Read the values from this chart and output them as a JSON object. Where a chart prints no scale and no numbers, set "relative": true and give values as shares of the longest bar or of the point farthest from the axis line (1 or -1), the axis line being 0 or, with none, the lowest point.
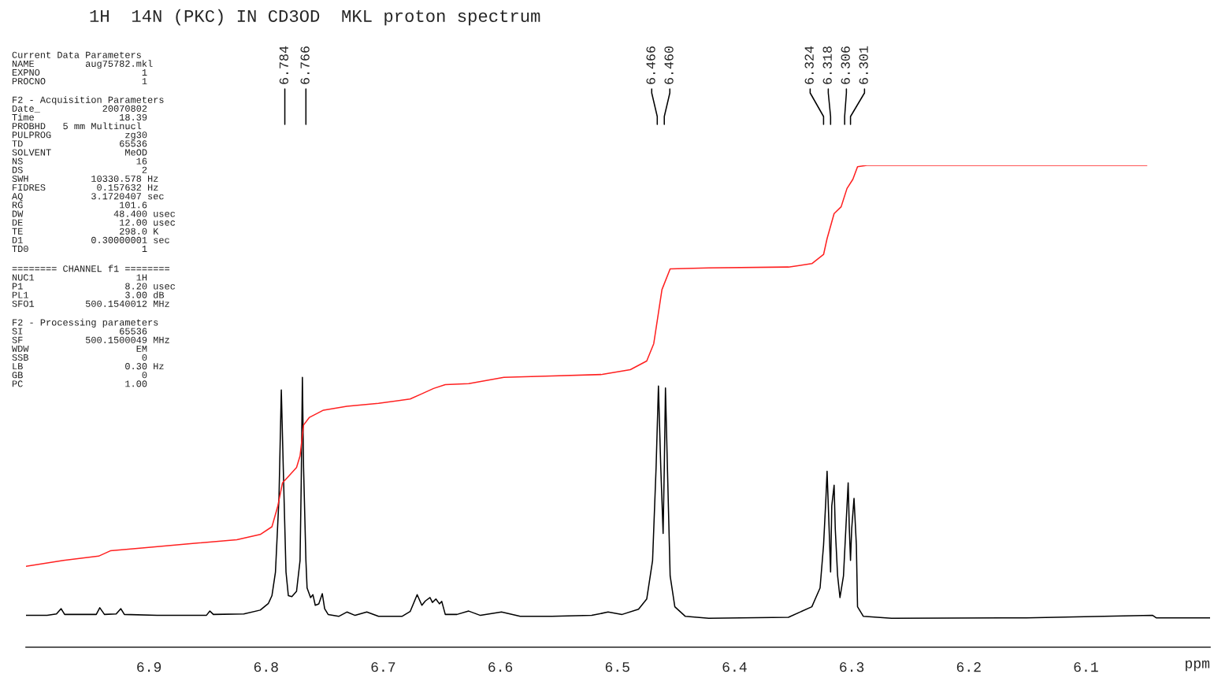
{
  "chart_data": {
    "type": "line",
    "title": "1H  14N (PKC) IN CD3OD  MKL proton spectrum",
    "xlabel": "ppm",
    "relative": true,
    "legend": false,
    "grid": false,
    "xlim": [
      7.005,
      5.994
    ],
    "xticks": [
      6.9,
      6.8,
      6.7,
      6.6,
      6.5,
      6.4,
      6.3,
      6.2,
      6.1
    ],
    "annotations": [
      {
        "text": "6.784",
        "x": 6.784
      },
      {
        "text": "6.766",
        "x": 6.766
      },
      {
        "text": "6.466",
        "x": 6.466
      },
      {
        "text": "6.460",
        "x": 6.46
      },
      {
        "text": "6.324",
        "x": 6.324
      },
      {
        "text": "6.318",
        "x": 6.318
      },
      {
        "text": "6.306",
        "x": 6.306
      },
      {
        "text": "6.301",
        "x": 6.301
      },
      "Current Data Parameters\nNAME         aug75782.mkl\nEXPNO                  1\nPROCNO                 1",
      "F2 - Acquisition Parameters\nDate_           20070802\nTime               18.39\nPROBHD   5 mm Multinucl\nPULPROG             zg30\nTD                 65536\nSOLVENT             MeOD\nNS                    16\nDS                     2\nSWH           10330.578 Hz\nFIDRES         0.157632 Hz\nAQ            3.1720407 sec\nRG                 101.6\nDW                48.400 usec\nDE                 12.00 usec\nTE                 298.0 K\nD1            0.30000001 sec\nTD0                    1",
      "======== CHANNEL f1 ========\nNUC1                  1H\nP1                  8.20 usec\nPL1                 3.00 dB\nSFO1         500.1540012 MHz",
      "F2 - Processing parameters\nSI                 65536\nSF           500.1500049 MHz\nWDW                   EM\nSSB                    0\nLB                  0.30 Hz\nGB                     0\nPC                  1.00"
    ],
    "series": [
      {
        "color": "#000000",
        "x": [
          7.005,
          6.987,
          6.979,
          6.975,
          6.972,
          6.945,
          6.942,
          6.938,
          6.928,
          6.924,
          6.921,
          6.893,
          6.851,
          6.848,
          6.845,
          6.819,
          6.805,
          6.798,
          6.795,
          6.792,
          6.789,
          6.787,
          6.785,
          6.783,
          6.781,
          6.778,
          6.774,
          6.771,
          6.77,
          6.769,
          6.768,
          6.766,
          6.765,
          6.762,
          6.76,
          6.758,
          6.755,
          6.752,
          6.75,
          6.747,
          6.738,
          6.731,
          6.724,
          6.714,
          6.704,
          6.684,
          6.677,
          6.671,
          6.667,
          6.664,
          6.66,
          6.658,
          6.655,
          6.652,
          6.65,
          6.647,
          6.637,
          6.627,
          6.617,
          6.599,
          6.583,
          6.556,
          6.522,
          6.508,
          6.496,
          6.482,
          6.475,
          6.47,
          6.467,
          6.465,
          6.463,
          6.461,
          6.46,
          6.459,
          6.457,
          6.455,
          6.451,
          6.442,
          6.422,
          6.354,
          6.334,
          6.327,
          6.324,
          6.322,
          6.321,
          6.319,
          6.318,
          6.317,
          6.315,
          6.314,
          6.312,
          6.31,
          6.307,
          6.305,
          6.303,
          6.302,
          6.301,
          6.3,
          6.298,
          6.296,
          6.295,
          6.29,
          6.266,
          6.151,
          6.043,
          6.04,
          5.994
        ],
        "values": [
          0.066,
          0.066,
          0.069,
          0.08,
          0.068,
          0.068,
          0.082,
          0.068,
          0.069,
          0.08,
          0.068,
          0.066,
          0.066,
          0.075,
          0.068,
          0.069,
          0.077,
          0.091,
          0.107,
          0.156,
          0.309,
          0.534,
          0.341,
          0.156,
          0.107,
          0.105,
          0.116,
          0.18,
          0.341,
          0.56,
          0.373,
          0.18,
          0.123,
          0.103,
          0.109,
          0.087,
          0.09,
          0.111,
          0.08,
          0.068,
          0.064,
          0.073,
          0.066,
          0.073,
          0.064,
          0.064,
          0.074,
          0.109,
          0.087,
          0.096,
          0.103,
          0.093,
          0.1,
          0.09,
          0.095,
          0.068,
          0.068,
          0.075,
          0.066,
          0.073,
          0.064,
          0.064,
          0.066,
          0.073,
          0.068,
          0.079,
          0.1,
          0.18,
          0.373,
          0.542,
          0.373,
          0.236,
          0.373,
          0.538,
          0.341,
          0.148,
          0.084,
          0.064,
          0.06,
          0.062,
          0.084,
          0.123,
          0.212,
          0.309,
          0.365,
          0.228,
          0.156,
          0.293,
          0.336,
          0.245,
          0.148,
          0.103,
          0.148,
          0.245,
          0.341,
          0.245,
          0.18,
          0.245,
          0.309,
          0.212,
          0.084,
          0.064,
          0.06,
          0.061,
          0.066,
          0.061,
          0.061
        ]
      },
      {
        "color": "#ff2020",
        "x": [
          7.005,
          6.973,
          6.943,
          6.933,
          6.906,
          6.859,
          6.825,
          6.805,
          6.795,
          6.79,
          6.786,
          6.781,
          6.774,
          6.771,
          6.768,
          6.763,
          6.751,
          6.731,
          6.704,
          6.677,
          6.667,
          6.657,
          6.647,
          6.627,
          6.597,
          6.556,
          6.513,
          6.489,
          6.475,
          6.469,
          6.465,
          6.462,
          6.455,
          6.422,
          6.354,
          6.334,
          6.324,
          6.321,
          6.315,
          6.309,
          6.304,
          6.299,
          6.295,
          6.287,
          6.048
        ],
        "values": [
          0.168,
          0.18,
          0.189,
          0.2,
          0.206,
          0.216,
          0.223,
          0.234,
          0.25,
          0.293,
          0.341,
          0.354,
          0.373,
          0.397,
          0.461,
          0.477,
          0.492,
          0.5,
          0.506,
          0.515,
          0.526,
          0.537,
          0.545,
          0.547,
          0.56,
          0.563,
          0.566,
          0.576,
          0.594,
          0.63,
          0.694,
          0.742,
          0.785,
          0.787,
          0.789,
          0.796,
          0.815,
          0.848,
          0.9,
          0.914,
          0.952,
          0.971,
          0.997,
          1.0,
          1.0
        ]
      }
    ]
  }
}
